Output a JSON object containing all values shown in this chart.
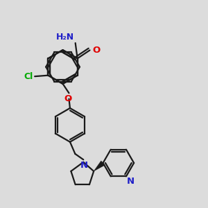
{
  "background_color": "#dcdcdc",
  "bond_color": "#1a1a1a",
  "atom_colors": {
    "N": "#2020c8",
    "O": "#e00000",
    "Cl": "#00aa00",
    "H": "#2020c8"
  },
  "figsize": [
    3.0,
    3.0
  ],
  "dpi": 100,
  "lw": 1.6,
  "ring_r": 0.082
}
